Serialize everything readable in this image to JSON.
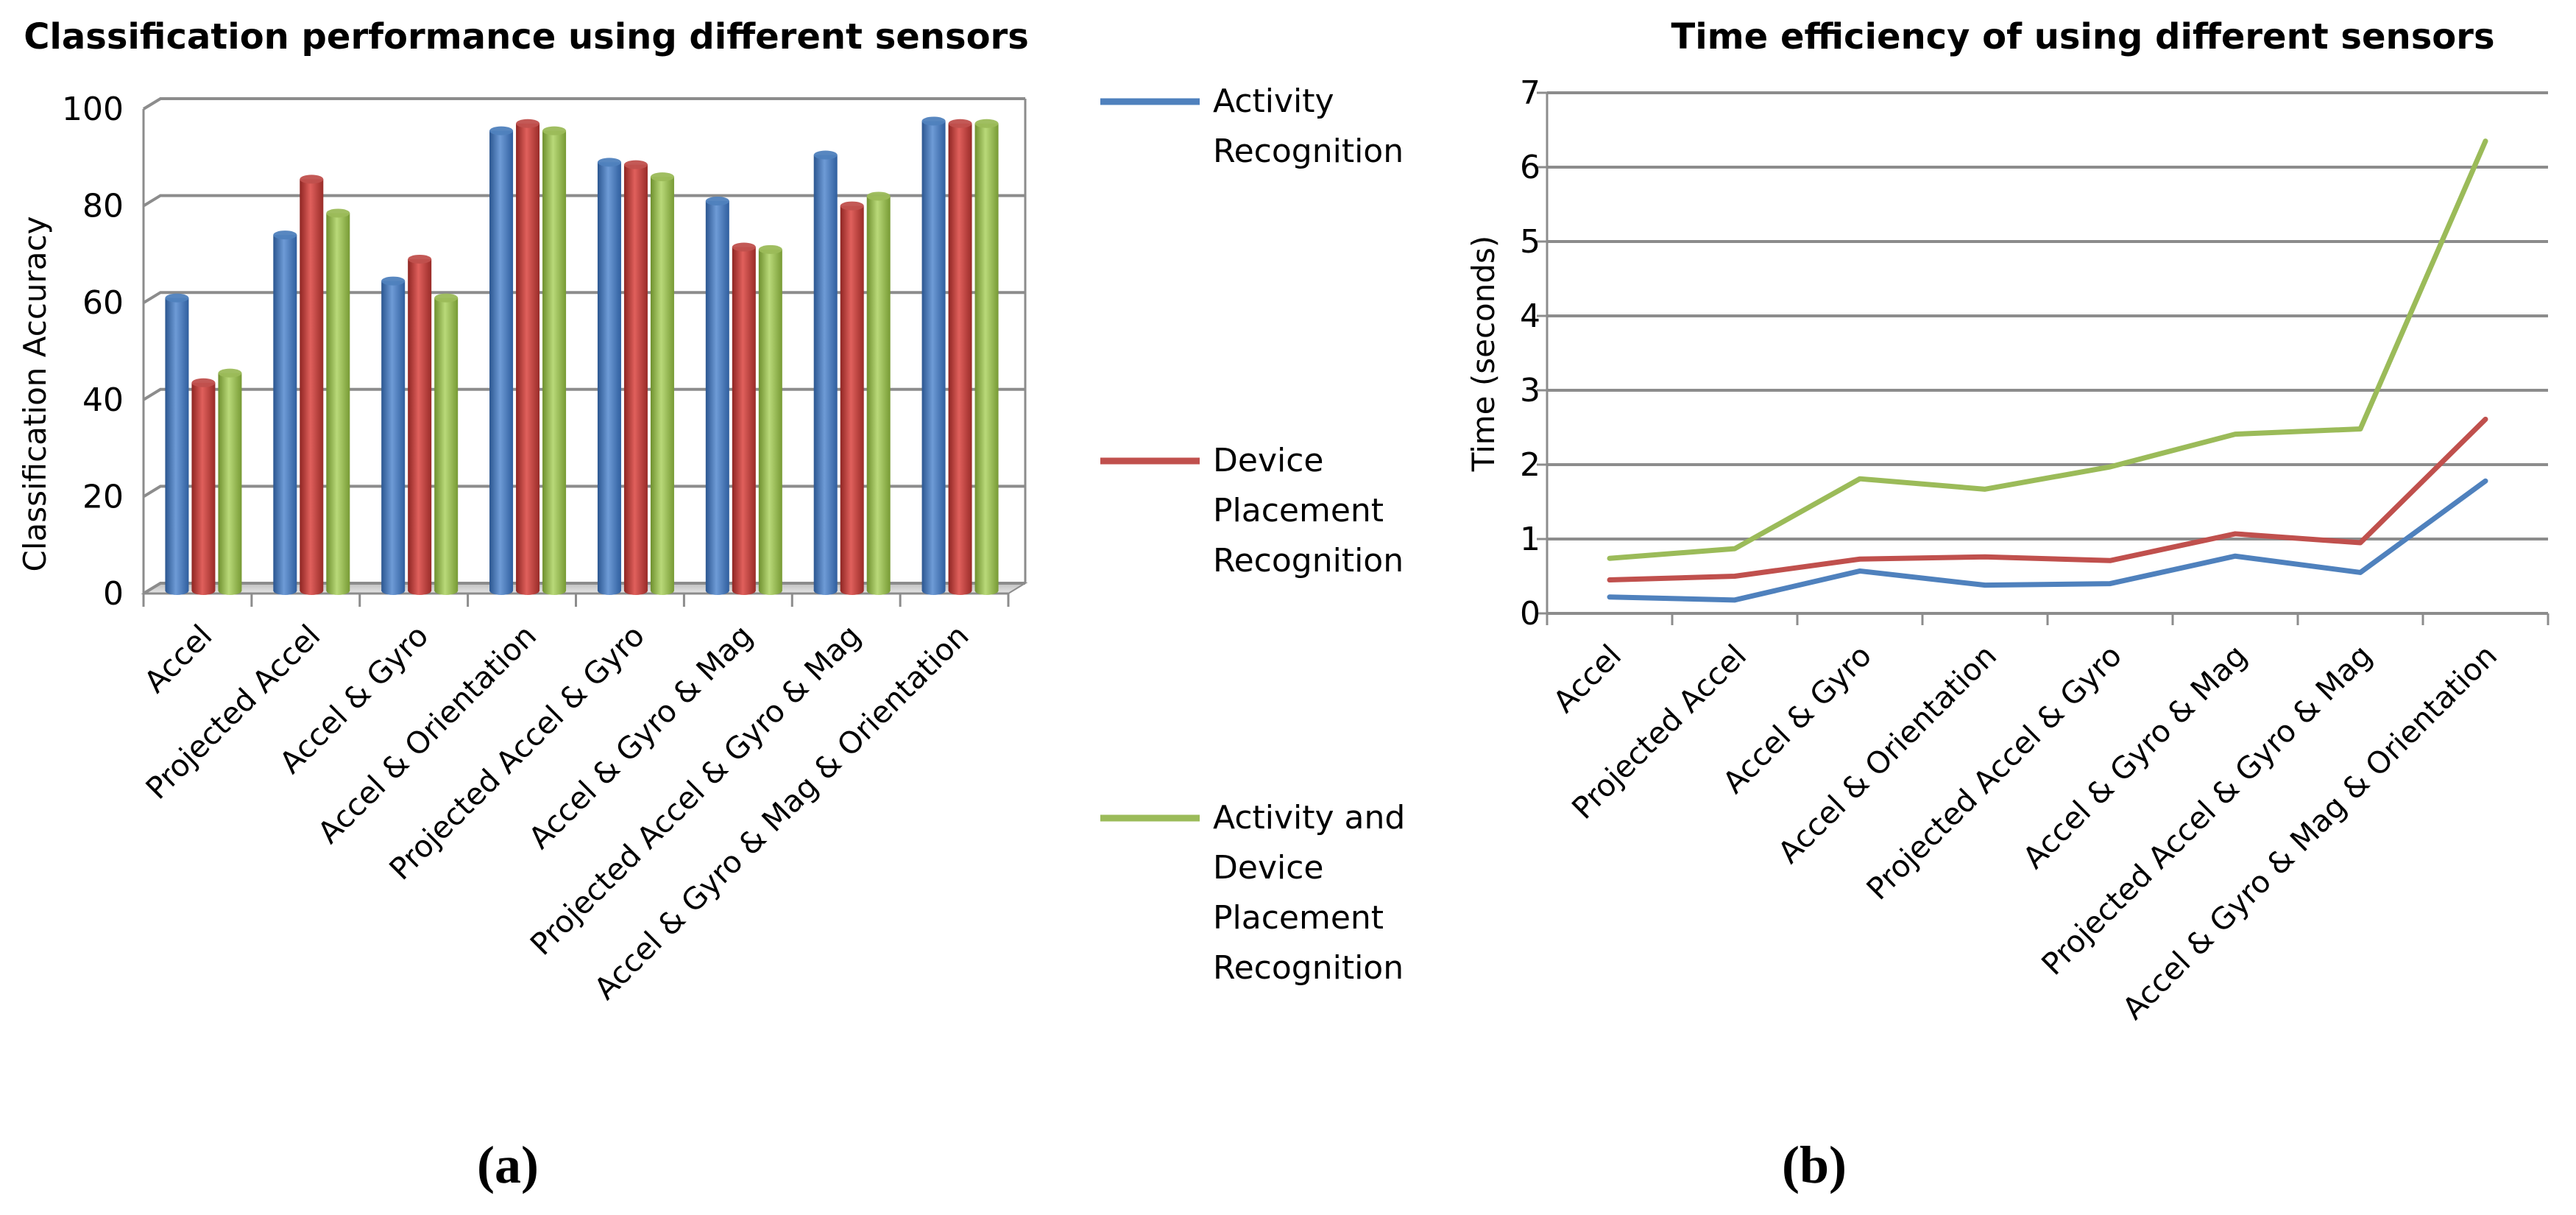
{
  "chart_data": [
    {
      "type": "bar",
      "title": "Classification performance using different sensors",
      "xlabel": "",
      "ylabel": "Classification Accuracy",
      "ylim": [
        0,
        100
      ],
      "yticks": [
        "0",
        "20",
        "40",
        "60",
        "80",
        "100"
      ],
      "categories": [
        "Accel",
        "Projected Accel",
        "Accel & Gyro",
        "Accel & Orientation",
        "Projected Accel & Gyro",
        "Accel & Gyro & Mag",
        "Projected Accel & Gyro & Mag",
        "Accel & Gyro & Mag & Orientation"
      ],
      "series": [
        {
          "name": "Activity Recognition",
          "values": [
            61,
            74,
            64.5,
            95.5,
            89,
            81,
            90.5,
            97.5
          ]
        },
        {
          "name": "Device Placement Recognition",
          "values": [
            43.5,
            85.5,
            69,
            97,
            88.5,
            71.5,
            80,
            97
          ]
        },
        {
          "name": "Activity and Device Placement Recognition",
          "values": [
            45.5,
            78.5,
            61,
            95.5,
            86,
            71,
            82,
            97
          ]
        }
      ],
      "grid": true,
      "panel_label": "(a)"
    },
    {
      "type": "line",
      "title": "Time efficiency of using different sensors",
      "xlabel": "",
      "ylabel": "Time (seconds)",
      "ylim": [
        0,
        7
      ],
      "yticks": [
        "0",
        "1",
        "2",
        "3",
        "4",
        "5",
        "6",
        "7"
      ],
      "categories": [
        "Accel",
        "Projected Accel",
        "Accel & Gyro",
        "Accel & Orientation",
        "Projected Accel & Gyro",
        "Accel & Gyro & Mag",
        "Projected Accel & Gyro & Mag",
        "Accel & Gyro & Mag & Orientation"
      ],
      "series": [
        {
          "name": "Activity Recognition",
          "values": [
            0.22,
            0.18,
            0.57,
            0.38,
            0.4,
            0.77,
            0.55,
            1.78
          ]
        },
        {
          "name": "Device Placement Recognition",
          "values": [
            0.45,
            0.5,
            0.73,
            0.76,
            0.71,
            1.07,
            0.95,
            2.61
          ]
        },
        {
          "name": "Activity and Device Placement Recognition",
          "values": [
            0.74,
            0.87,
            1.81,
            1.67,
            1.97,
            2.41,
            2.48,
            6.35
          ]
        }
      ],
      "grid": true,
      "panel_label": "(b)"
    }
  ],
  "legend": {
    "placement": "between-charts",
    "items": [
      {
        "lines": [
          "Activity",
          "Recognition"
        ],
        "color": "#4F81BD"
      },
      {
        "lines": [
          "Device",
          "Placement",
          "Recognition"
        ],
        "color": "#C0504D"
      },
      {
        "lines": [
          "Activity and",
          "Device",
          "Placement",
          "Recognition"
        ],
        "color": "#9BBB59"
      }
    ]
  },
  "colors": {
    "series": [
      "#4F81BD",
      "#C0504D",
      "#9BBB59"
    ],
    "grid": "#8C8C8C"
  }
}
